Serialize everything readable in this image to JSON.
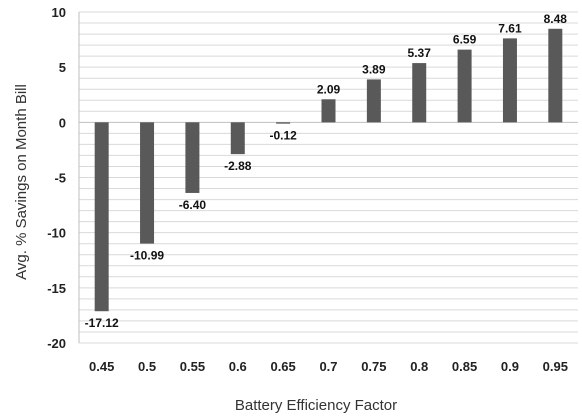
{
  "chart_data": {
    "type": "bar",
    "title": "",
    "xlabel": "Battery Efficiency Factor",
    "ylabel": "Avg. % Savings on Month Bill",
    "categories": [
      "0.45",
      "0.5",
      "0.55",
      "0.6",
      "0.65",
      "0.7",
      "0.75",
      "0.8",
      "0.85",
      "0.9",
      "0.95"
    ],
    "values": [
      -17.12,
      -10.99,
      -6.4,
      -2.88,
      -0.12,
      2.09,
      3.89,
      5.37,
      6.59,
      7.61,
      8.48
    ],
    "value_labels": [
      "-17.12",
      "-10.99",
      "-6.40",
      "-2.88",
      "-0.12",
      "2.09",
      "3.89",
      "5.37",
      "6.59",
      "7.61",
      "8.48"
    ],
    "ylim": [
      -20,
      10
    ],
    "yticks": [
      "10",
      "5",
      "0",
      "-5",
      "-10",
      "-15",
      "-20"
    ],
    "grid": true,
    "bar_color": "#595959",
    "grid_color": "#d9d9d9"
  }
}
